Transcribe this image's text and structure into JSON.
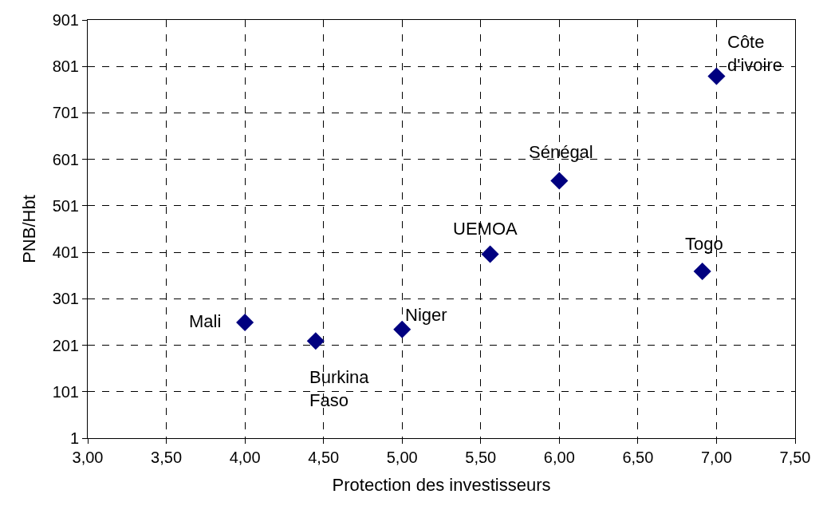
{
  "chart_data": {
    "type": "scatter",
    "xlabel": "Protection des investisseurs",
    "ylabel": "PNB/Hbt",
    "series": [
      {
        "color": "#000080",
        "x": [
          4.0,
          4.45,
          5.0,
          5.56,
          6.0,
          6.91,
          7.0
        ],
        "values": [
          250,
          210,
          235,
          397,
          555,
          360,
          780
        ]
      }
    ],
    "marker": "diamond",
    "grid": true,
    "xlim": [
      3,
      7.5
    ],
    "xticks": [
      {
        "value": 3,
        "label": "3,00"
      },
      {
        "value": 3.5,
        "label": "3,50"
      },
      {
        "value": 4,
        "label": "4,00"
      },
      {
        "value": 4.5,
        "label": "4,50"
      },
      {
        "value": 5,
        "label": "5,00"
      },
      {
        "value": 5.5,
        "label": "5,50"
      },
      {
        "value": 6,
        "label": "6,00"
      },
      {
        "value": 6.5,
        "label": "6,50"
      },
      {
        "value": 7,
        "label": "7,00"
      },
      {
        "value": 7.5,
        "label": "7,50"
      }
    ],
    "ylim": [
      1,
      901
    ],
    "yticks": [
      1,
      101,
      201,
      301,
      401,
      501,
      601,
      701,
      801,
      901
    ],
    "annotations": [
      {
        "text": "Mali",
        "x": 4.0,
        "y": 250
      },
      {
        "text": "Burkina Faso",
        "x": 4.45,
        "y": 210
      },
      {
        "text": "Niger",
        "x": 5.0,
        "y": 235
      },
      {
        "text": "UEMOA",
        "x": 5.56,
        "y": 397
      },
      {
        "text": "Sénégal",
        "x": 6.0,
        "y": 555
      },
      {
        "text": "Togo",
        "x": 6.91,
        "y": 360
      },
      {
        "text": "Côte d'ivoire",
        "x": 7.0,
        "y": 780
      }
    ]
  }
}
